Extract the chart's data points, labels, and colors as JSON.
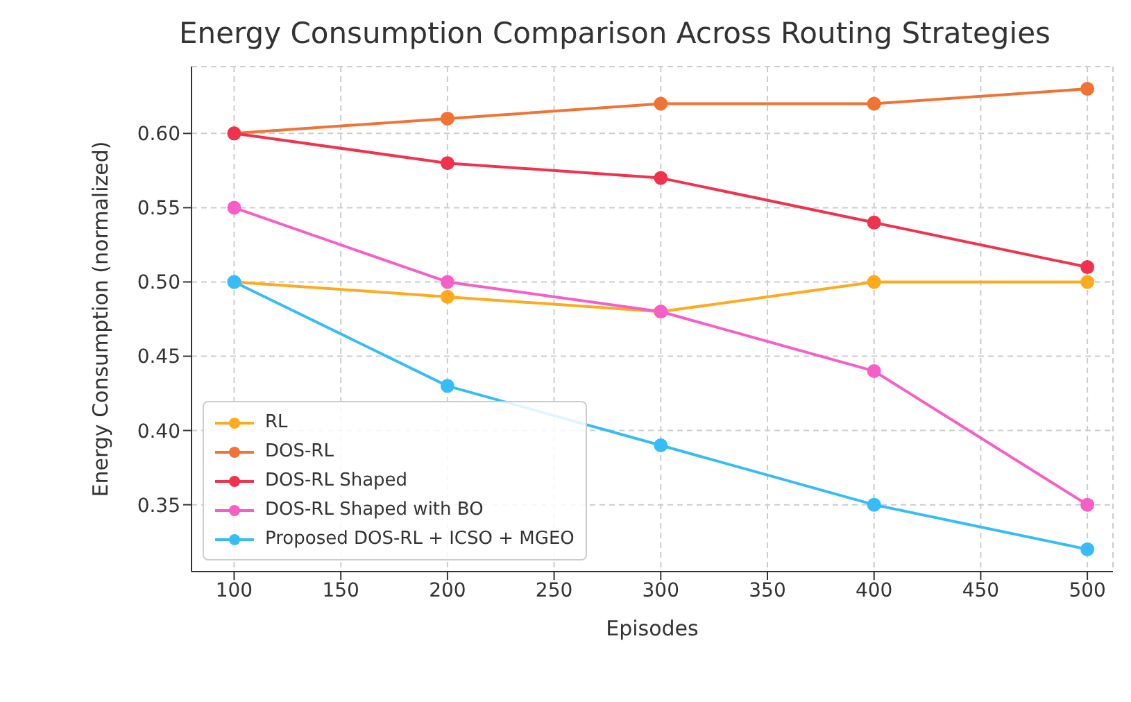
{
  "chart_data": {
    "type": "line",
    "title": "Energy Consumption Comparison Across Routing Strategies",
    "xlabel": "Episodes",
    "ylabel": "Energy Consumption (normalized)",
    "x": [
      100,
      200,
      300,
      400,
      500
    ],
    "series": [
      {
        "name": "RL",
        "color": "#ffaa1c",
        "values": [
          0.5,
          0.49,
          0.48,
          0.5,
          0.5
        ]
      },
      {
        "name": "DOS-RL",
        "color": "#f07334",
        "values": [
          0.6,
          0.61,
          0.62,
          0.62,
          0.63
        ]
      },
      {
        "name": "DOS-RL Shaped",
        "color": "#f0324f",
        "values": [
          0.6,
          0.58,
          0.57,
          0.54,
          0.51
        ]
      },
      {
        "name": "DOS-RL Shaped with BO",
        "color": "#f75ec8",
        "values": [
          0.55,
          0.5,
          0.48,
          0.44,
          0.35
        ]
      },
      {
        "name": "Proposed DOS-RL + ICSO + MGEO",
        "color": "#36bdf7",
        "values": [
          0.5,
          0.43,
          0.39,
          0.35,
          0.32
        ]
      }
    ],
    "xlim": [
      80,
      512
    ],
    "xticks": [
      100,
      150,
      200,
      250,
      300,
      350,
      400,
      450,
      500
    ],
    "ylim": [
      0.305,
      0.645
    ],
    "yticks": [
      0.35,
      {
        "value": 0.4,
        "label": "0.40"
      },
      0.45,
      {
        "value": 0.5,
        "label": "0.50"
      },
      0.55,
      {
        "value": 0.6,
        "label": "0.60"
      }
    ],
    "grid": true,
    "legend": "bottom left",
    "marker": "circle",
    "line_style": "solid"
  }
}
